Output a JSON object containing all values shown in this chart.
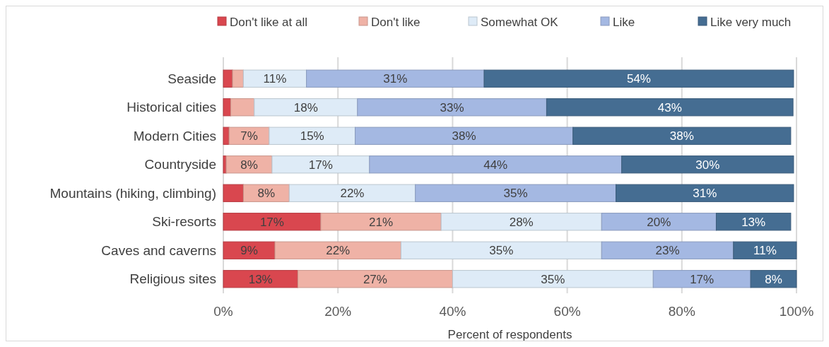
{
  "chart_data": {
    "type": "bar",
    "orientation": "horizontal",
    "stacked": true,
    "xlabel": "Percent of respondents",
    "categories": [
      "Seaside",
      "Historical cities",
      "Modern Cities",
      "Countryside",
      "Mountains (hiking, climbing)",
      "Ski-resorts",
      "Caves and caverns",
      "Religious sites"
    ],
    "series": [
      {
        "name": "Don't like at all",
        "color": "#d9474f",
        "values": [
          1.6,
          1.3,
          1.0,
          0.5,
          3.5,
          17,
          9,
          13
        ],
        "value_labels": [
          null,
          null,
          null,
          null,
          null,
          "17%",
          "9%",
          "13%"
        ]
      },
      {
        "name": "Don't like",
        "color": "#efb2a6",
        "values": [
          1.9,
          4.1,
          7,
          8,
          8,
          21,
          22,
          27
        ],
        "value_labels": [
          null,
          null,
          "7%",
          "8%",
          "8%",
          "21%",
          "22%",
          "27%"
        ]
      },
      {
        "name": "Somewhat OK",
        "color": "#deebf7",
        "values": [
          11,
          18,
          15,
          17,
          22,
          28,
          35,
          35
        ],
        "value_labels": [
          "11%",
          "18%",
          "15%",
          "17%",
          "22%",
          "28%",
          "35%",
          "35%"
        ]
      },
      {
        "name": "Like",
        "color": "#a4b8e2",
        "values": [
          31,
          33,
          38,
          44,
          35,
          20,
          23,
          17
        ],
        "value_labels": [
          "31%",
          "33%",
          "38%",
          "44%",
          "35%",
          "20%",
          "23%",
          "17%"
        ]
      },
      {
        "name": "Like very much",
        "color": "#456d92",
        "values": [
          54,
          43,
          38,
          30,
          31,
          13,
          11,
          8
        ],
        "value_labels": [
          "54%",
          "43%",
          "38%",
          "30%",
          "31%",
          "13%",
          "11%",
          "8%"
        ]
      }
    ],
    "xlim": [
      0,
      100
    ],
    "xticks": [
      {
        "value": 0,
        "label": "0%"
      },
      {
        "value": 20,
        "label": "20%"
      },
      {
        "value": 40,
        "label": "40%"
      },
      {
        "value": 60,
        "label": "60%"
      },
      {
        "value": 80,
        "label": "80%"
      },
      {
        "value": 100,
        "label": "100%"
      }
    ],
    "grid": "x",
    "legend": "top"
  }
}
